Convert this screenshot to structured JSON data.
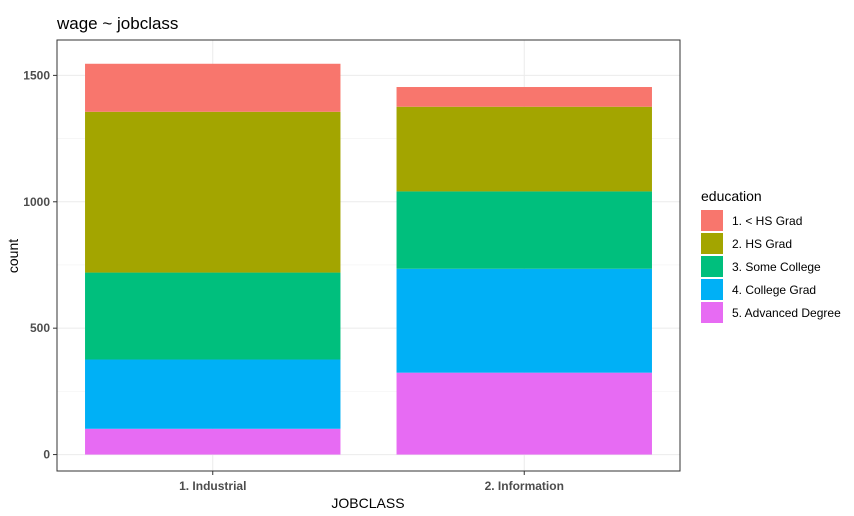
{
  "chart_data": {
    "type": "bar",
    "stacked": true,
    "title": "wage ~ jobclass",
    "xlabel": "JOBCLASS",
    "ylabel": "count",
    "categories": [
      "1. Industrial",
      "2. Information"
    ],
    "ylim": [
      0,
      1600
    ],
    "yticks": [
      0,
      500,
      1000,
      1500
    ],
    "grid": true,
    "legend": {
      "title": "education",
      "position": "right"
    },
    "series": [
      {
        "name": "5. Advanced Degree",
        "values": [
          102,
          324
        ],
        "color": "#E76BF3"
      },
      {
        "name": "4. College Grad",
        "values": [
          274,
          411
        ],
        "color": "#00B0F6"
      },
      {
        "name": "3. Some College",
        "values": [
          344,
          306
        ],
        "color": "#00BF7D"
      },
      {
        "name": "2. HS Grad",
        "values": [
          636,
          335
        ],
        "color": "#A3A500"
      },
      {
        "name": "1. < HS Grad",
        "values": [
          190,
          78
        ],
        "color": "#F8766D"
      }
    ],
    "legend_order": [
      "1. < HS Grad",
      "2. HS Grad",
      "3. Some College",
      "4. College Grad",
      "5. Advanced Degree"
    ]
  }
}
